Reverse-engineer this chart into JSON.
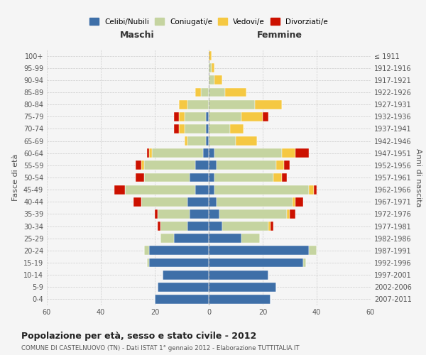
{
  "age_groups": [
    "0-4",
    "5-9",
    "10-14",
    "15-19",
    "20-24",
    "25-29",
    "30-34",
    "35-39",
    "40-44",
    "45-49",
    "50-54",
    "55-59",
    "60-64",
    "65-69",
    "70-74",
    "75-79",
    "80-84",
    "85-89",
    "90-94",
    "95-99",
    "100+"
  ],
  "birth_years": [
    "2007-2011",
    "2002-2006",
    "1997-2001",
    "1992-1996",
    "1987-1991",
    "1982-1986",
    "1977-1981",
    "1972-1976",
    "1967-1971",
    "1962-1966",
    "1957-1961",
    "1952-1956",
    "1947-1951",
    "1942-1946",
    "1937-1941",
    "1932-1936",
    "1927-1931",
    "1922-1926",
    "1917-1921",
    "1912-1916",
    "≤ 1911"
  ],
  "colors": {
    "celibi": "#3e6fa8",
    "coniugati": "#c5d4a0",
    "vedovi": "#f5c842",
    "divorziati": "#cc1100"
  },
  "maschi": {
    "celibi": [
      20,
      19,
      17,
      22,
      22,
      13,
      8,
      7,
      8,
      5,
      7,
      5,
      2,
      1,
      1,
      1,
      0,
      0,
      0,
      0,
      0
    ],
    "coniugati": [
      0,
      0,
      0,
      1,
      2,
      5,
      10,
      12,
      17,
      26,
      17,
      19,
      19,
      7,
      8,
      8,
      8,
      3,
      0,
      0,
      0
    ],
    "vedovi": [
      0,
      0,
      0,
      0,
      0,
      0,
      0,
      0,
      0,
      0,
      0,
      1,
      1,
      1,
      2,
      2,
      3,
      2,
      0,
      0,
      0
    ],
    "divorziati": [
      0,
      0,
      0,
      0,
      0,
      0,
      1,
      1,
      3,
      4,
      3,
      2,
      1,
      0,
      2,
      2,
      0,
      0,
      0,
      0,
      0
    ]
  },
  "femmine": {
    "celibi": [
      23,
      25,
      22,
      35,
      37,
      12,
      5,
      4,
      3,
      2,
      2,
      3,
      2,
      0,
      0,
      0,
      0,
      0,
      0,
      0,
      0
    ],
    "coniugati": [
      0,
      0,
      0,
      1,
      3,
      7,
      17,
      25,
      28,
      35,
      22,
      22,
      25,
      10,
      8,
      12,
      17,
      6,
      2,
      1,
      0
    ],
    "vedovi": [
      0,
      0,
      0,
      0,
      0,
      0,
      1,
      1,
      1,
      2,
      3,
      3,
      5,
      8,
      5,
      8,
      10,
      8,
      3,
      1,
      1
    ],
    "divorziati": [
      0,
      0,
      0,
      0,
      0,
      0,
      1,
      2,
      3,
      1,
      2,
      2,
      5,
      0,
      0,
      2,
      0,
      0,
      0,
      0,
      0
    ]
  },
  "xlim": 60,
  "title": "Popolazione per età, sesso e stato civile - 2012",
  "subtitle": "COMUNE DI CASTELNUOVO (TN) - Dati ISTAT 1° gennaio 2012 - Elaborazione TUTTITALIA.IT",
  "ylabel_left": "Fasce di età",
  "ylabel_right": "Anni di nascita",
  "xlabel_maschi": "Maschi",
  "xlabel_femmine": "Femmine",
  "legend_labels": [
    "Celibi/Nubili",
    "Coniugati/e",
    "Vedovi/e",
    "Divorziati/e"
  ],
  "bg_color": "#f5f5f5",
  "bar_height": 0.75
}
